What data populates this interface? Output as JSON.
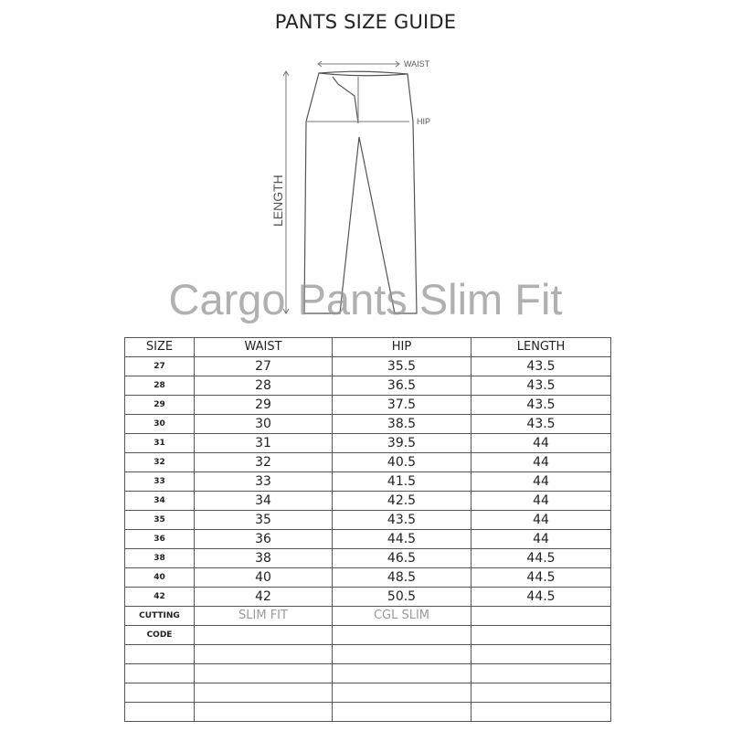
{
  "title": "PANTS SIZE GUIDE",
  "diagram": {
    "waist": "WAIST",
    "hip": "HIP",
    "length": "LENGTH"
  },
  "overlay": "Cargo Pants Slim Fit",
  "table": {
    "headers": [
      "SIZE",
      "WAIST",
      "HIP",
      "LENGTH"
    ],
    "rows": [
      [
        "27",
        "27",
        "35.5",
        "43.5"
      ],
      [
        "28",
        "28",
        "36.5",
        "43.5"
      ],
      [
        "29",
        "29",
        "37.5",
        "43.5"
      ],
      [
        "30",
        "30",
        "38.5",
        "43.5"
      ],
      [
        "31",
        "31",
        "39.5",
        "44"
      ],
      [
        "32",
        "32",
        "40.5",
        "44"
      ],
      [
        "33",
        "33",
        "41.5",
        "44"
      ],
      [
        "34",
        "34",
        "42.5",
        "44"
      ],
      [
        "35",
        "35",
        "43.5",
        "44"
      ],
      [
        "36",
        "36",
        "44.5",
        "44"
      ],
      [
        "38",
        "38",
        "46.5",
        "44.5"
      ],
      [
        "40",
        "40",
        "48.5",
        "44.5"
      ],
      [
        "42",
        "42",
        "50.5",
        "44.5"
      ]
    ],
    "cutting": {
      "label": "CUTTING",
      "values": [
        "SLIM FIT",
        "CGL SLIM",
        ""
      ]
    },
    "code": {
      "label": "CODE"
    },
    "blank_rows": 4
  }
}
